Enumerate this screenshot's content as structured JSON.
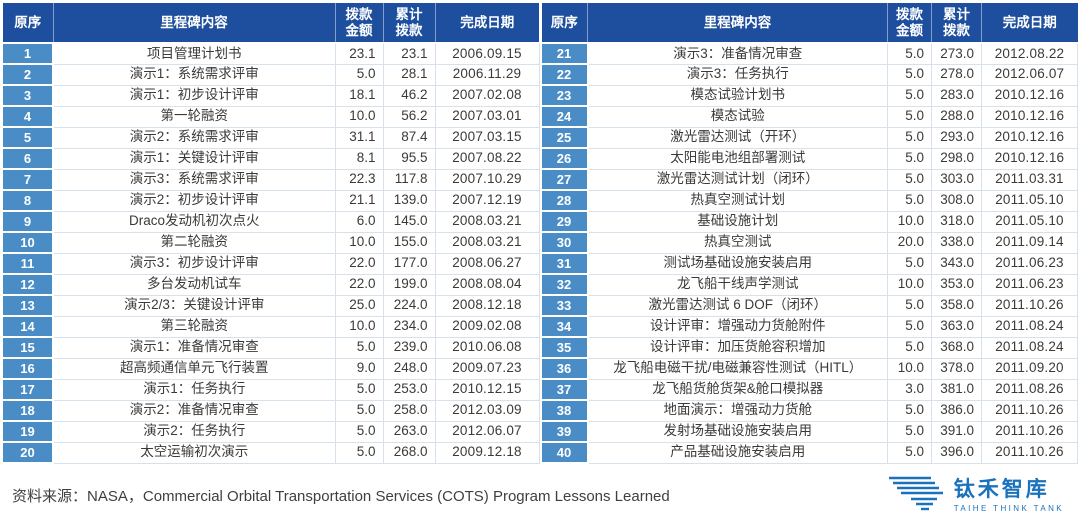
{
  "colors": {
    "header_bg": "#1e4f9e",
    "index_bg": "#4a8dc6",
    "logo_blue": "#1a72bd",
    "body_text": "#3a3a3a"
  },
  "table": {
    "headers": [
      "原序",
      "里程碑内容",
      "拨款\n金额",
      "累计\n拨款",
      "完成日期"
    ],
    "left_rows": [
      {
        "no": "1",
        "content": "项目管理计划书",
        "amount": "23.1",
        "cumulative": "23.1",
        "date": "2006.09.15"
      },
      {
        "no": "2",
        "content": "演示1：系统需求评审",
        "amount": "5.0",
        "cumulative": "28.1",
        "date": "2006.11.29"
      },
      {
        "no": "3",
        "content": "演示1：初步设计评审",
        "amount": "18.1",
        "cumulative": "46.2",
        "date": "2007.02.08"
      },
      {
        "no": "4",
        "content": "第一轮融资",
        "amount": "10.0",
        "cumulative": "56.2",
        "date": "2007.03.01"
      },
      {
        "no": "5",
        "content": "演示2：系统需求评审",
        "amount": "31.1",
        "cumulative": "87.4",
        "date": "2007.03.15"
      },
      {
        "no": "6",
        "content": "演示1：关键设计评审",
        "amount": "8.1",
        "cumulative": "95.5",
        "date": "2007.08.22"
      },
      {
        "no": "7",
        "content": "演示3：系统需求评审",
        "amount": "22.3",
        "cumulative": "117.8",
        "date": "2007.10.29"
      },
      {
        "no": "8",
        "content": "演示2：初步设计评审",
        "amount": "21.1",
        "cumulative": "139.0",
        "date": "2007.12.19"
      },
      {
        "no": "9",
        "content": "Draco发动机初次点火",
        "amount": "6.0",
        "cumulative": "145.0",
        "date": "2008.03.21"
      },
      {
        "no": "10",
        "content": "第二轮融资",
        "amount": "10.0",
        "cumulative": "155.0",
        "date": "2008.03.21"
      },
      {
        "no": "11",
        "content": "演示3：初步设计评审",
        "amount": "22.0",
        "cumulative": "177.0",
        "date": "2008.06.27"
      },
      {
        "no": "12",
        "content": "多台发动机试车",
        "amount": "22.0",
        "cumulative": "199.0",
        "date": "2008.08.04"
      },
      {
        "no": "13",
        "content": "演示2/3：关键设计评审",
        "amount": "25.0",
        "cumulative": "224.0",
        "date": "2008.12.18"
      },
      {
        "no": "14",
        "content": "第三轮融资",
        "amount": "10.0",
        "cumulative": "234.0",
        "date": "2009.02.08"
      },
      {
        "no": "15",
        "content": "演示1：准备情况审查",
        "amount": "5.0",
        "cumulative": "239.0",
        "date": "2010.06.08"
      },
      {
        "no": "16",
        "content": "超高频通信单元飞行装置",
        "amount": "9.0",
        "cumulative": "248.0",
        "date": "2009.07.23"
      },
      {
        "no": "17",
        "content": "演示1：任务执行",
        "amount": "5.0",
        "cumulative": "253.0",
        "date": "2010.12.15"
      },
      {
        "no": "18",
        "content": "演示2：准备情况审查",
        "amount": "5.0",
        "cumulative": "258.0",
        "date": "2012.03.09"
      },
      {
        "no": "19",
        "content": "演示2：任务执行",
        "amount": "5.0",
        "cumulative": "263.0",
        "date": "2012.06.07"
      },
      {
        "no": "20",
        "content": "太空运输初次演示",
        "amount": "5.0",
        "cumulative": "268.0",
        "date": "2009.12.18"
      }
    ],
    "right_rows": [
      {
        "no": "21",
        "content": "演示3：准备情况审查",
        "amount": "5.0",
        "cumulative": "273.0",
        "date": "2012.08.22"
      },
      {
        "no": "22",
        "content": "演示3：任务执行",
        "amount": "5.0",
        "cumulative": "278.0",
        "date": "2012.06.07"
      },
      {
        "no": "23",
        "content": "模态试验计划书",
        "amount": "5.0",
        "cumulative": "283.0",
        "date": "2010.12.16"
      },
      {
        "no": "24",
        "content": "模态试验",
        "amount": "5.0",
        "cumulative": "288.0",
        "date": "2010.12.16"
      },
      {
        "no": "25",
        "content": "激光雷达测试（开环）",
        "amount": "5.0",
        "cumulative": "293.0",
        "date": "2010.12.16"
      },
      {
        "no": "26",
        "content": "太阳能电池组部署测试",
        "amount": "5.0",
        "cumulative": "298.0",
        "date": "2010.12.16"
      },
      {
        "no": "27",
        "content": "激光雷达测试计划（闭环）",
        "amount": "5.0",
        "cumulative": "303.0",
        "date": "2011.03.31"
      },
      {
        "no": "28",
        "content": "热真空测试计划",
        "amount": "5.0",
        "cumulative": "308.0",
        "date": "2011.05.10"
      },
      {
        "no": "29",
        "content": "基础设施计划",
        "amount": "10.0",
        "cumulative": "318.0",
        "date": "2011.05.10"
      },
      {
        "no": "30",
        "content": "热真空测试",
        "amount": "20.0",
        "cumulative": "338.0",
        "date": "2011.09.14"
      },
      {
        "no": "31",
        "content": "测试场基础设施安装启用",
        "amount": "5.0",
        "cumulative": "343.0",
        "date": "2011.06.23"
      },
      {
        "no": "32",
        "content": "龙飞船干线声学测试",
        "amount": "10.0",
        "cumulative": "353.0",
        "date": "2011.06.23"
      },
      {
        "no": "33",
        "content": "激光雷达测试 6 DOF（闭环）",
        "amount": "5.0",
        "cumulative": "358.0",
        "date": "2011.10.26"
      },
      {
        "no": "34",
        "content": "设计评审：增强动力货舱附件",
        "amount": "5.0",
        "cumulative": "363.0",
        "date": "2011.08.24"
      },
      {
        "no": "35",
        "content": "设计评审：加压货舱容积增加",
        "amount": "5.0",
        "cumulative": "368.0",
        "date": "2011.08.24"
      },
      {
        "no": "36",
        "content": "龙飞船电磁干扰/电磁兼容性测试（HITL）",
        "amount": "10.0",
        "cumulative": "378.0",
        "date": "2011.09.20"
      },
      {
        "no": "37",
        "content": "龙飞船货舱货架&舱口模拟器",
        "amount": "3.0",
        "cumulative": "381.0",
        "date": "2011.08.26"
      },
      {
        "no": "38",
        "content": "地面演示：增强动力货舱",
        "amount": "5.0",
        "cumulative": "386.0",
        "date": "2011.10.26"
      },
      {
        "no": "39",
        "content": "发射场基础设施安装启用",
        "amount": "5.0",
        "cumulative": "391.0",
        "date": "2011.10.26"
      },
      {
        "no": "40",
        "content": "产品基础设施安装启用",
        "amount": "5.0",
        "cumulative": "396.0",
        "date": "2011.10.26"
      }
    ]
  },
  "footer": {
    "source_label": "资料来源：",
    "source_text": "NASA，Commercial Orbital Transportation Services (COTS) Program Lessons Learned",
    "logo_cn": "钛禾智库",
    "logo_en": "TAIHE THINK TANK"
  }
}
